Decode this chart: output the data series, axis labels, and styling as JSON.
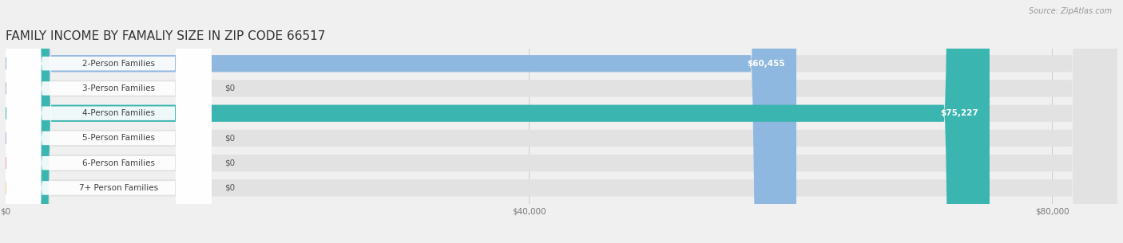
{
  "title": "FAMILY INCOME BY FAMALIY SIZE IN ZIP CODE 66517",
  "source": "Source: ZipAtlas.com",
  "categories": [
    "2-Person Families",
    "3-Person Families",
    "4-Person Families",
    "5-Person Families",
    "6-Person Families",
    "7+ Person Families"
  ],
  "values": [
    60455,
    0,
    75227,
    0,
    0,
    0
  ],
  "bar_colors": [
    "#8fb8e0",
    "#c4a8cc",
    "#3ab5b0",
    "#aaaadd",
    "#f4a0b5",
    "#f5c898"
  ],
  "value_labels": [
    "$60,455",
    "$0",
    "$75,227",
    "$0",
    "$0",
    "$0"
  ],
  "xlim_max": 85000,
  "xticks": [
    0,
    40000,
    80000
  ],
  "xtick_labels": [
    "$0",
    "$40,000",
    "$80,000"
  ],
  "bg_color": "#f0f0f0",
  "bar_bg_color": "#e2e2e2",
  "title_fontsize": 11,
  "label_fontsize": 7.5,
  "value_fontsize": 7.5,
  "tick_fontsize": 7.5,
  "source_fontsize": 7
}
